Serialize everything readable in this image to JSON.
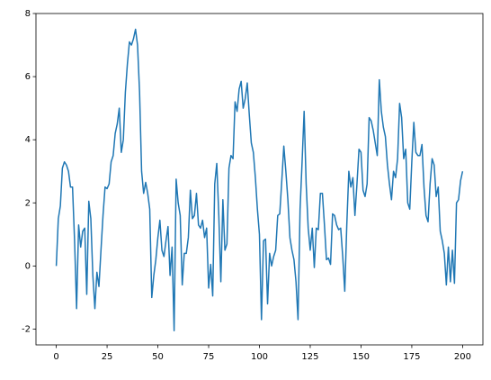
{
  "chart_data": {
    "type": "line",
    "x": [
      0,
      1,
      2,
      3,
      4,
      5,
      6,
      7,
      8,
      9,
      10,
      11,
      12,
      13,
      14,
      15,
      16,
      17,
      18,
      19,
      20,
      21,
      22,
      23,
      24,
      25,
      26,
      27,
      28,
      29,
      30,
      31,
      32,
      33,
      34,
      35,
      36,
      37,
      38,
      39,
      40,
      41,
      42,
      43,
      44,
      45,
      46,
      47,
      48,
      49,
      50,
      51,
      52,
      53,
      54,
      55,
      56,
      57,
      58,
      59,
      60,
      61,
      62,
      63,
      64,
      65,
      66,
      67,
      68,
      69,
      70,
      71,
      72,
      73,
      74,
      75,
      76,
      77,
      78,
      79,
      80,
      81,
      82,
      83,
      84,
      85,
      86,
      87,
      88,
      89,
      90,
      91,
      92,
      93,
      94,
      95,
      96,
      97,
      98,
      99,
      100,
      101,
      102,
      103,
      104,
      105,
      106,
      107,
      108,
      109,
      110,
      111,
      112,
      113,
      114,
      115,
      116,
      117,
      118,
      119,
      120,
      121,
      122,
      123,
      124,
      125,
      126,
      127,
      128,
      129,
      130,
      131,
      132,
      133,
      134,
      135,
      136,
      137,
      138,
      139,
      140,
      141,
      142,
      143,
      144,
      145,
      146,
      147,
      148,
      149,
      150,
      151,
      152,
      153,
      154,
      155,
      156,
      157,
      158,
      159,
      160,
      161,
      162,
      163,
      164,
      165,
      166,
      167,
      168,
      169,
      170,
      171,
      172,
      173,
      174,
      175,
      176,
      177,
      178,
      179,
      180,
      181,
      182,
      183,
      184,
      185,
      186,
      187,
      188,
      189,
      190,
      191,
      192,
      193,
      194,
      195,
      196,
      197,
      198,
      199,
      200
    ],
    "values": [
      0,
      1.5,
      1.9,
      3.1,
      3.3,
      3.2,
      3.0,
      2.5,
      2.5,
      0.8,
      -1.35,
      1.3,
      0.6,
      1.1,
      1.2,
      -0.9,
      2.05,
      1.5,
      -0.3,
      -1.35,
      -0.2,
      -0.65,
      0.5,
      1.6,
      2.5,
      2.45,
      2.6,
      3.3,
      3.5,
      4.2,
      4.5,
      5.0,
      3.6,
      4.0,
      5.5,
      6.4,
      7.1,
      7.0,
      7.2,
      7.5,
      7.0,
      5.5,
      3.0,
      2.3,
      2.65,
      2.3,
      1.8,
      -1.0,
      -0.3,
      0.2,
      0.9,
      1.45,
      0.5,
      0.3,
      0.8,
      1.25,
      -0.3,
      0.6,
      -2.05,
      2.75,
      2.0,
      1.6,
      -0.6,
      0.4,
      0.4,
      0.9,
      2.4,
      1.5,
      1.6,
      2.3,
      1.3,
      1.2,
      1.45,
      0.9,
      1.2,
      -0.7,
      0.05,
      -0.95,
      2.6,
      3.25,
      1.6,
      -0.5,
      2.1,
      0.5,
      0.7,
      3.1,
      3.5,
      3.4,
      5.2,
      4.9,
      5.6,
      5.85,
      5.0,
      5.3,
      5.8,
      4.8,
      3.9,
      3.6,
      2.8,
      1.8,
      1.0,
      -1.7,
      0.8,
      0.85,
      -1.2,
      0.4,
      0.0,
      0.3,
      0.5,
      1.6,
      1.65,
      2.7,
      3.8,
      3.0,
      2.1,
      0.9,
      0.5,
      0.2,
      -0.5,
      -1.7,
      1.8,
      3.3,
      4.9,
      2.6,
      1.2,
      0.5,
      1.2,
      -0.05,
      1.2,
      1.15,
      2.3,
      2.3,
      1.3,
      0.2,
      0.25,
      0.05,
      1.65,
      1.6,
      1.3,
      1.15,
      1.2,
      0.3,
      -0.8,
      1.3,
      3.0,
      2.5,
      2.8,
      1.6,
      2.6,
      3.7,
      3.6,
      2.4,
      2.2,
      2.6,
      4.7,
      4.6,
      4.3,
      3.9,
      3.5,
      5.9,
      4.9,
      4.4,
      4.1,
      3.2,
      2.6,
      2.1,
      3.0,
      2.8,
      3.4,
      5.15,
      4.7,
      3.4,
      3.7,
      2.0,
      1.8,
      3.3,
      4.55,
      3.6,
      3.5,
      3.5,
      3.85,
      2.5,
      1.6,
      1.4,
      2.6,
      3.4,
      3.2,
      2.2,
      2.5,
      1.1,
      0.8,
      0.4,
      -0.6,
      0.6,
      -0.5,
      0.5,
      -0.55,
      2.0,
      2.1,
      2.7,
      3.0
    ],
    "color": "#1f77b4",
    "xlim": [
      -10,
      210
    ],
    "xticks": [
      0,
      25,
      50,
      75,
      100,
      125,
      150,
      175,
      200
    ],
    "ylim": [
      -2.5,
      8
    ],
    "yticks": [
      -2,
      0,
      2,
      4,
      6,
      8
    ],
    "grid": false
  }
}
